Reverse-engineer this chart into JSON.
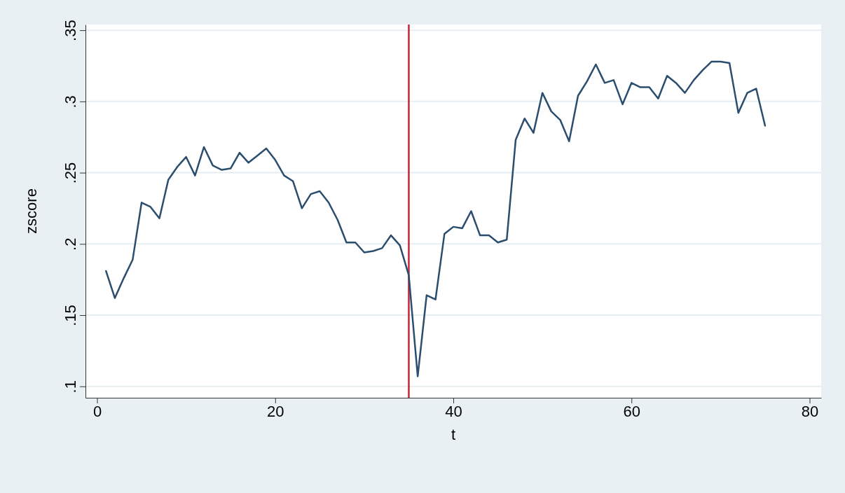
{
  "chart_data": {
    "type": "line",
    "xlabel": "t",
    "ylabel": "zscore",
    "x": [
      1,
      2,
      3,
      4,
      5,
      6,
      7,
      8,
      9,
      10,
      11,
      12,
      13,
      14,
      15,
      16,
      17,
      18,
      19,
      20,
      21,
      22,
      23,
      24,
      25,
      26,
      27,
      28,
      29,
      30,
      31,
      32,
      33,
      34,
      35,
      36,
      37,
      38,
      39,
      40,
      41,
      42,
      43,
      44,
      45,
      46,
      47,
      48,
      49,
      50,
      51,
      52,
      53,
      54,
      55,
      56,
      57,
      58,
      59,
      60,
      61,
      62,
      63,
      64,
      65,
      66,
      67,
      68,
      69,
      70,
      71,
      72,
      73,
      74,
      75
    ],
    "series": [
      {
        "color": "#2b4e6f",
        "values": [
          0.181,
          0.162,
          0.176,
          0.189,
          0.229,
          0.226,
          0.218,
          0.245,
          0.254,
          0.261,
          0.248,
          0.268,
          0.255,
          0.252,
          0.253,
          0.264,
          0.257,
          0.262,
          0.267,
          0.259,
          0.248,
          0.244,
          0.225,
          0.235,
          0.237,
          0.229,
          0.217,
          0.201,
          0.201,
          0.194,
          0.195,
          0.197,
          0.206,
          0.199,
          0.178,
          0.107,
          0.164,
          0.161,
          0.207,
          0.212,
          0.211,
          0.223,
          0.206,
          0.206,
          0.201,
          0.203,
          0.273,
          0.288,
          0.278,
          0.306,
          0.293,
          0.287,
          0.272,
          0.304,
          0.314,
          0.326,
          0.313,
          0.315,
          0.298,
          0.313,
          0.31,
          0.31,
          0.302,
          0.318,
          0.313,
          0.306,
          0.315,
          0.322,
          0.328,
          0.328,
          0.327,
          0.292,
          0.306,
          0.309,
          0.283
        ]
      }
    ],
    "xlim": [
      -1.3,
      81.3
    ],
    "xticks": [
      0,
      20,
      40,
      60,
      80
    ],
    "ylim": [
      0.092,
      0.354
    ],
    "yticks": [
      {
        "value": 0.1,
        "label": ".1"
      },
      {
        "value": 0.15,
        "label": ".15"
      },
      {
        "value": 0.2,
        "label": ".2"
      },
      {
        "value": 0.25,
        "label": ".25"
      },
      {
        "value": 0.3,
        "label": ".3"
      },
      {
        "value": 0.35,
        "label": ".35"
      }
    ],
    "grid": "y",
    "line_style": "solid",
    "marker": "none",
    "ref_lines": [
      {
        "axis": "x",
        "value": 35,
        "color": "#c0283a"
      }
    ]
  }
}
